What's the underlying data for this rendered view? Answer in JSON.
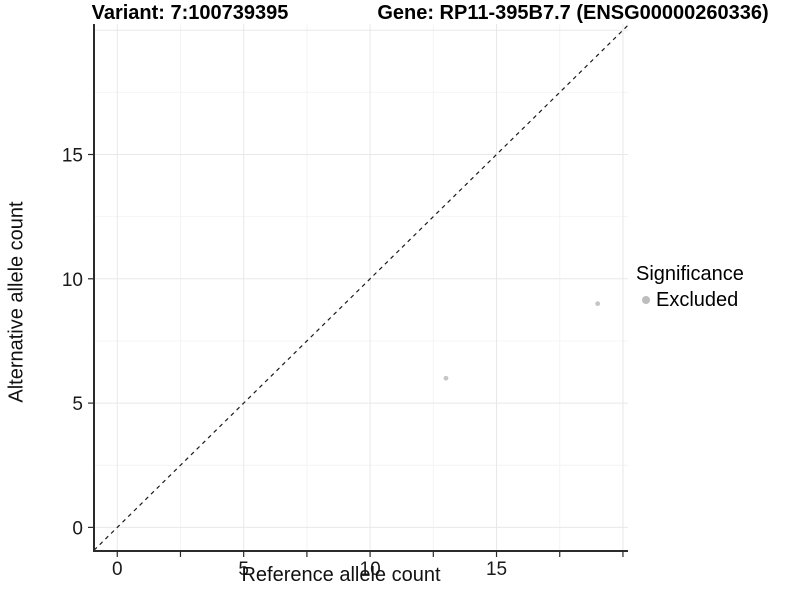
{
  "header": {
    "title_left": "Variant: 7:100739395",
    "title_right": "Gene: RP11-395B7.7 (ENSG00000260336)"
  },
  "legend": {
    "title": "Significance",
    "items": [
      {
        "label": "Excluded",
        "color": "#bdbdbd"
      }
    ]
  },
  "chart_data": {
    "type": "scatter",
    "xlabel": "Reference allele count",
    "ylabel": "Alternative allele count",
    "xlim": [
      -0.92,
      20.2
    ],
    "ylim": [
      -0.95,
      20.25
    ],
    "x_tick_labels": [
      0,
      5,
      10,
      15
    ],
    "x_tick_marks": [
      0,
      2.5,
      5,
      7.5,
      10,
      12.5,
      15,
      17.5,
      20
    ],
    "y_tick_labels": [
      0,
      5,
      10,
      15
    ],
    "y_tick_marks": [
      0,
      5,
      10,
      15
    ],
    "grid_major": [
      0,
      5,
      10,
      15,
      20
    ],
    "grid_minor": [
      2.5,
      7.5,
      12.5,
      17.5
    ],
    "grid_major_color": "#e8e8e8",
    "grid_minor_color": "#f4f4f4",
    "axis_color": "#2b2b2b",
    "identity_line": {
      "equation": "y = x",
      "style": "dashed",
      "color": "#1a1a1a"
    },
    "series": [
      {
        "name": "Excluded",
        "color": "#c6c6c6",
        "points": [
          [
            13,
            6
          ],
          [
            19,
            9
          ]
        ]
      }
    ],
    "point_radius": 2.4,
    "legend_position": "right",
    "grid": true
  }
}
